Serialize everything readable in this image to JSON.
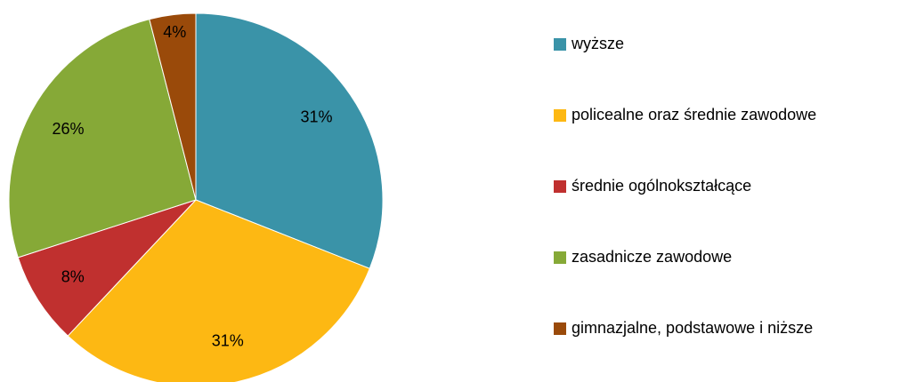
{
  "chart_data": {
    "type": "pie",
    "categories": [
      "wyższe",
      "policealne oraz średnie zawodowe",
      "średnie ogólnokształcące",
      "zasadnicze zawodowe",
      "gimnazjalne, podstawowe i niższe"
    ],
    "values": [
      31,
      31,
      8,
      26,
      4
    ],
    "value_labels": [
      "31%",
      "31%",
      "8%",
      "26%",
      "4%"
    ],
    "colors": [
      "#3a93a8",
      "#fdb813",
      "#c0302f",
      "#86a937",
      "#9a4a0a"
    ],
    "legend": "right"
  }
}
